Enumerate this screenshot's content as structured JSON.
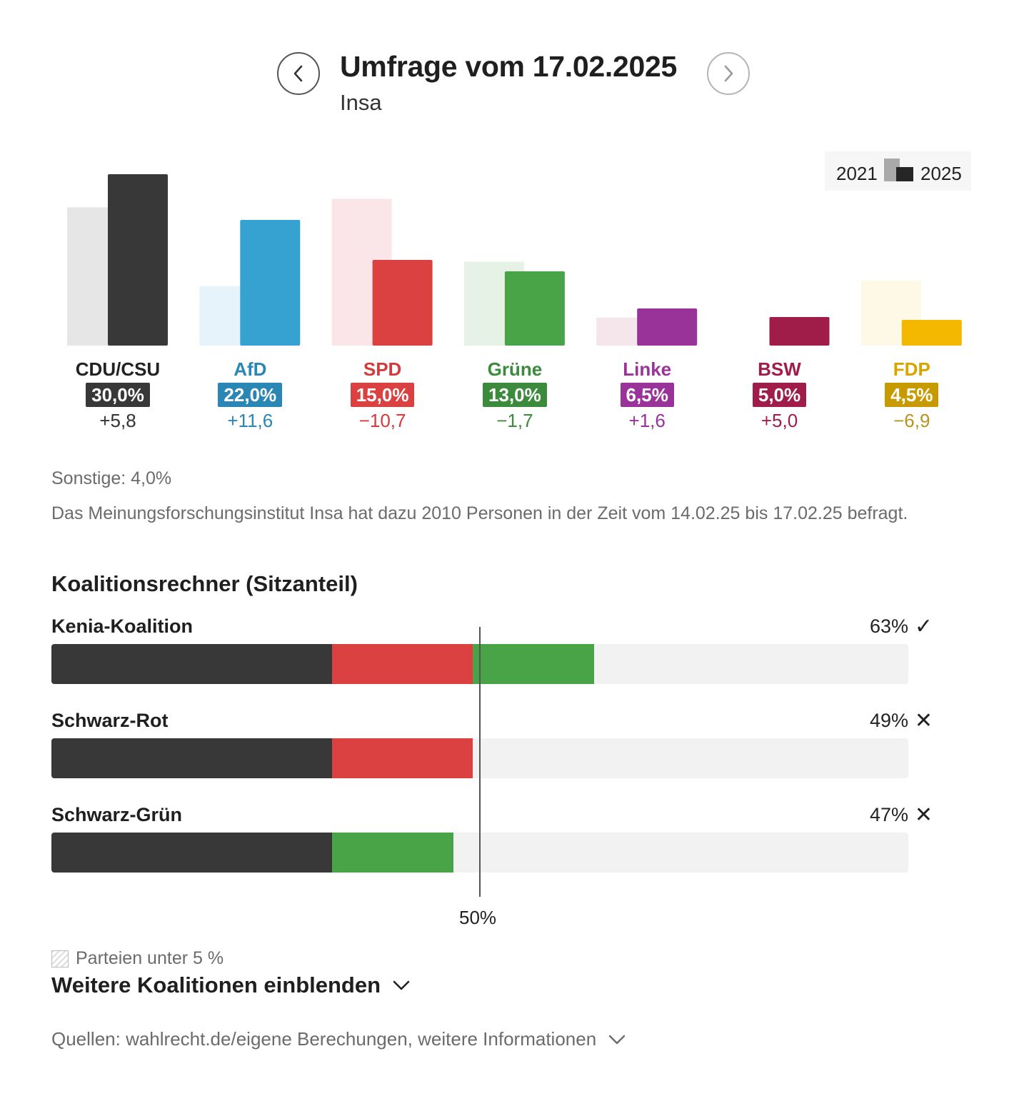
{
  "header": {
    "title": "Umfrage vom 17.02.2025",
    "institute": "Insa"
  },
  "legend": {
    "previous_label": "2021",
    "current_label": "2025"
  },
  "chart_data": {
    "type": "bar",
    "title": "Umfrage vom 17.02.2025",
    "categories": [
      "CDU/CSU",
      "AfD",
      "SPD",
      "Grüne",
      "Linke",
      "BSW",
      "FDP"
    ],
    "series": [
      {
        "name": "2021",
        "values": [
          24.2,
          10.4,
          25.7,
          14.7,
          4.9,
          0.0,
          11.4
        ]
      },
      {
        "name": "2025",
        "values": [
          30.0,
          22.0,
          15.0,
          13.0,
          6.5,
          5.0,
          4.5
        ]
      }
    ],
    "ylim": [
      0,
      30
    ],
    "value_labels": [
      "30,0%",
      "22,0%",
      "15,0%",
      "13,0%",
      "6,5%",
      "5,0%",
      "4,5%"
    ],
    "change_labels": [
      "+5,8",
      "+11,6",
      "−10,7",
      "−1,7",
      "+1,6",
      "+5,0",
      "−6,9"
    ]
  },
  "parties": [
    {
      "name": "CDU/CSU",
      "value": "30,0%",
      "diff": "+5,8",
      "color": "#383838",
      "old_color": "#e6e6e6",
      "text_color": "#222222",
      "diff_color": "#333333"
    },
    {
      "name": "AfD",
      "value": "22,0%",
      "diff": "+11,6",
      "color": "#35a2d2",
      "old_color": "#e6f3fa",
      "text_color": "#2a86b4",
      "diff_color": "#2a86b4",
      "badge_color": "#2a86b4"
    },
    {
      "name": "SPD",
      "value": "15,0%",
      "diff": "−10,7",
      "color": "#dc4141",
      "old_color": "#fae6e8",
      "text_color": "#d63a3a",
      "diff_color": "#d63a3a"
    },
    {
      "name": "Grüne",
      "value": "13,0%",
      "diff": "−1,7",
      "color": "#48a447",
      "old_color": "#e7f2e6",
      "text_color": "#3c8a3c",
      "diff_color": "#3c8a3c",
      "badge_color": "#3c8a3c"
    },
    {
      "name": "Linke",
      "value": "6,5%",
      "diff": "+1,6",
      "color": "#993399",
      "old_color": "#f5e6ec",
      "text_color": "#993399",
      "diff_color": "#993399"
    },
    {
      "name": "BSW",
      "value": "5,0%",
      "diff": "+5,0",
      "color": "#a11d49",
      "old_color": "#f5e6ec",
      "text_color": "#a11d49",
      "diff_color": "#a11d49"
    },
    {
      "name": "FDP",
      "value": "4,5%",
      "diff": "−6,9",
      "color": "#f5b800",
      "old_color": "#fef8e6",
      "text_color": "#d9a400",
      "diff_color": "#b8941f",
      "badge_color": "#c79a00"
    }
  ],
  "others_label": "Sonstige: 4,0%",
  "method_text": "Das Meinungsforschungsinstitut Insa hat dazu 2010 Personen in der Zeit vom 14.02.25 bis 17.02.25 befragt.",
  "coalitions": {
    "heading": "Koalitionsrechner (Sitzanteil)",
    "majority_label": "50%",
    "items": [
      {
        "name": "Kenia-Koalition",
        "pct": "63%",
        "mark": "✓",
        "segments": [
          {
            "party": "CDU/CSU",
            "share": 32.75,
            "color": "#383838"
          },
          {
            "party": "SPD",
            "share": 16.4,
            "color": "#dc4141"
          },
          {
            "party": "Grüne",
            "share": 14.2,
            "color": "#48a447"
          }
        ]
      },
      {
        "name": "Schwarz-Rot",
        "pct": "49%",
        "mark": "✕",
        "segments": [
          {
            "party": "CDU/CSU",
            "share": 32.75,
            "color": "#383838"
          },
          {
            "party": "SPD",
            "share": 16.4,
            "color": "#dc4141"
          }
        ]
      },
      {
        "name": "Schwarz-Grün",
        "pct": "47%",
        "mark": "✕",
        "segments": [
          {
            "party": "CDU/CSU",
            "share": 32.75,
            "color": "#383838"
          },
          {
            "party": "Grüne",
            "share": 14.2,
            "color": "#48a447"
          }
        ]
      }
    ]
  },
  "footer": {
    "hatch_note": "Parteien unter 5 %",
    "more_coalitions": "Weitere Koalitionen einblenden",
    "sources": "Quellen: wahlrecht.de/eigene Berechungen, weitere Informationen"
  }
}
